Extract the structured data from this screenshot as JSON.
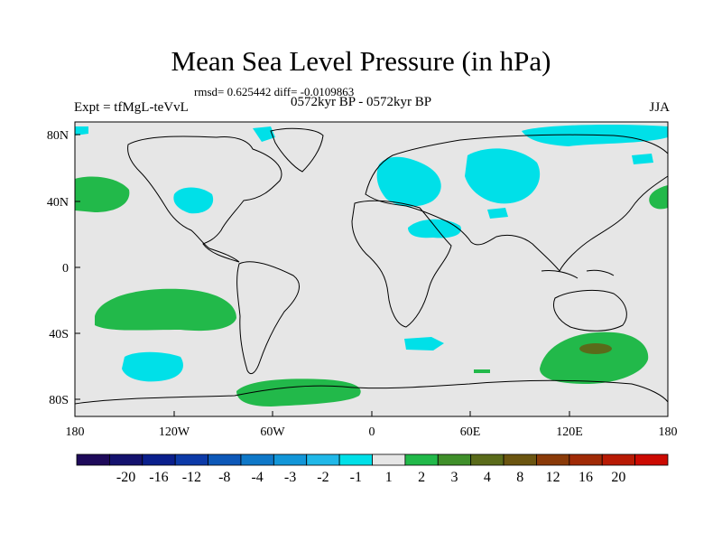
{
  "title": "Mean Sea Level Pressure (in hPa)",
  "stats": "rmsd= 0.625442 diff= -0.0109863",
  "experiment": "Expt = tfMgL-teVvL",
  "period": "0572kyr BP - 0572kyr BP",
  "season": "JJA",
  "colors": {
    "ocean_land_neutral": "#e6e6e6",
    "cyan_neg1": "#00e0e8",
    "green_pos1": "#22b94a",
    "olive_pos3": "#5a6b1a",
    "coast": "#000000"
  },
  "lat_labels": [
    "80N",
    "40N",
    "0",
    "40S",
    "80S"
  ],
  "lon_labels": [
    "180",
    "120W",
    "60W",
    "0",
    "60E",
    "120E",
    "180"
  ],
  "colorbar": {
    "labels": [
      "-20",
      "-16",
      "-12",
      "-8",
      "-4",
      "-3",
      "-2",
      "-1",
      "1",
      "2",
      "3",
      "4",
      "8",
      "12",
      "16",
      "20"
    ],
    "colors": [
      "#1e0a5a",
      "#14126e",
      "#0a1f8c",
      "#0c3aa8",
      "#0d58b8",
      "#0f78c8",
      "#1296d8",
      "#20b8e8",
      "#00e0e8",
      "#e6e6e6",
      "#22b94a",
      "#3f8f2a",
      "#5a6b1a",
      "#6b5510",
      "#8a3a08",
      "#a02a06",
      "#b81a04",
      "#cc0a02"
    ]
  }
}
